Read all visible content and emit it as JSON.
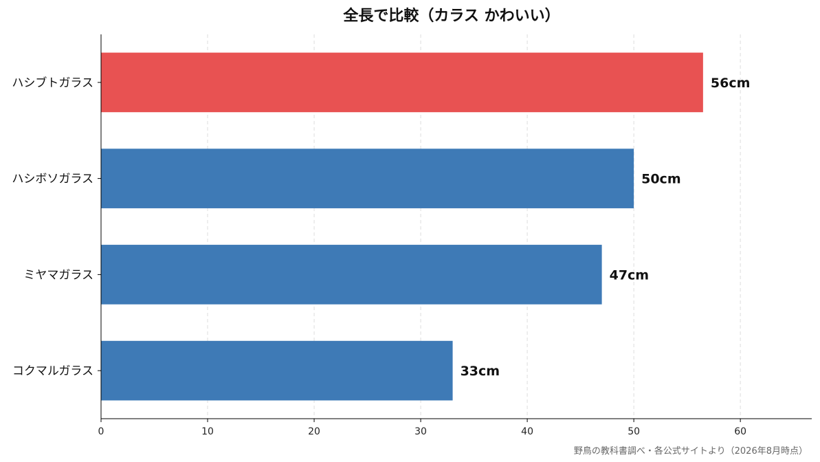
{
  "chart_data": {
    "type": "bar",
    "orientation": "horizontal",
    "title": "全長で比較（カラス かわいい）",
    "categories": [
      "ハシブトガラス",
      "ハシボソガラス",
      "ミヤマガラス",
      "コクマルガラス"
    ],
    "values": [
      56.5,
      50,
      47,
      33
    ],
    "data_labels": [
      "56cm",
      "50cm",
      "47cm",
      "33cm"
    ],
    "highlight_index": 0,
    "xlim": [
      0,
      66.7
    ],
    "xticks": [
      0,
      10,
      20,
      30,
      40,
      50,
      60
    ],
    "grid": "x-dashed",
    "colors": {
      "highlight": "#e85252",
      "default": "#3e7ab6",
      "grid": "#dddddd",
      "axis": "#000000"
    },
    "source_note": "野鳥の教科書調べ・各公式サイトより（2026年8月時点）"
  }
}
